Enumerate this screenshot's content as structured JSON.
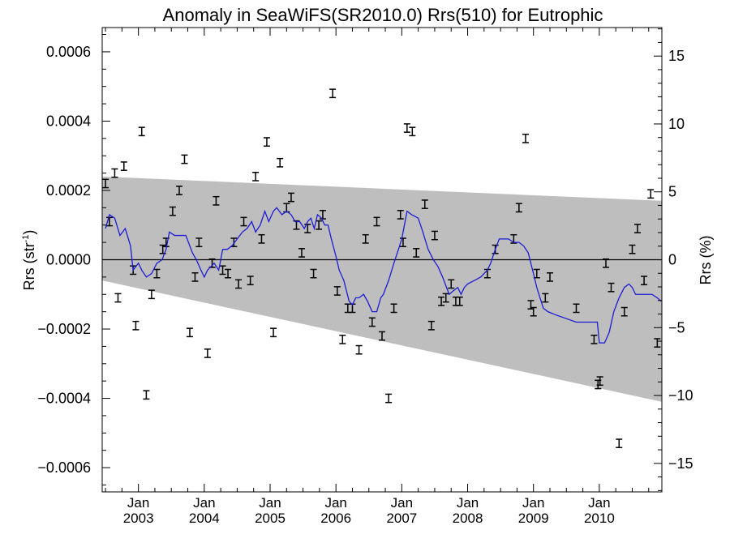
{
  "chart_data": {
    "type": "scatter",
    "title": "Anomaly in SeaWiFS(SR2010.0) Rrs(510) for Eutrophic",
    "ylabel_main": "Rrs (str",
    "ylabel_sup": "-1",
    "ylabel_close": ")",
    "ylabel_right": "Rrs (%)",
    "xlim": [
      2002.45,
      2010.95
    ],
    "ylim": [
      -0.00067,
      0.00067
    ],
    "ylim_right": [
      -17.1,
      17.1
    ],
    "yticks_left": [
      {
        "v": 0.0006,
        "label": "0.0006"
      },
      {
        "v": 0.0004,
        "label": "0.0004"
      },
      {
        "v": 0.0002,
        "label": "0.0002"
      },
      {
        "v": 0.0,
        "label": "0.0000"
      },
      {
        "v": -0.0002,
        "label": "−0.0002"
      },
      {
        "v": -0.0004,
        "label": "−0.0004"
      },
      {
        "v": -0.0006,
        "label": "−0.0006"
      }
    ],
    "yticks_right": [
      {
        "v": 15,
        "label": "15"
      },
      {
        "v": 10,
        "label": "10"
      },
      {
        "v": 5,
        "label": "5"
      },
      {
        "v": 0,
        "label": "0"
      },
      {
        "v": -5,
        "label": "−5"
      },
      {
        "v": -10,
        "label": "−10"
      },
      {
        "v": -15,
        "label": "−15"
      }
    ],
    "xticks": [
      {
        "v": 2003,
        "label": "Jan",
        "year": "2003"
      },
      {
        "v": 2004,
        "label": "Jan",
        "year": "2004"
      },
      {
        "v": 2005,
        "label": "Jan",
        "year": "2005"
      },
      {
        "v": 2006,
        "label": "Jan",
        "year": "2006"
      },
      {
        "v": 2007,
        "label": "Jan",
        "year": "2007"
      },
      {
        "v": 2008,
        "label": "Jan",
        "year": "2008"
      },
      {
        "v": 2009,
        "label": "Jan",
        "year": "2009"
      },
      {
        "v": 2010,
        "label": "Jan",
        "year": "2010"
      }
    ],
    "band": {
      "upper": [
        [
          2002.45,
          0.00024
        ],
        [
          2010.95,
          0.00017
        ]
      ],
      "lower": [
        [
          2002.45,
          -6e-05
        ],
        [
          2010.95,
          -0.00041
        ]
      ],
      "color": "#bebebe"
    },
    "zero_line": 0.0,
    "smooth_line": {
      "color": "#1c1cd4",
      "points": [
        [
          2002.5,
          9e-05
        ],
        [
          2002.56,
          0.00013
        ],
        [
          2002.64,
          0.00012
        ],
        [
          2002.72,
          7e-05
        ],
        [
          2002.8,
          9e-05
        ],
        [
          2002.88,
          4e-05
        ],
        [
          2002.92,
          -3e-05
        ],
        [
          2003.0,
          -1e-05
        ],
        [
          2003.05,
          -3e-05
        ],
        [
          2003.12,
          -5e-05
        ],
        [
          2003.2,
          -4e-05
        ],
        [
          2003.28,
          -1e-05
        ],
        [
          2003.36,
          0.0
        ],
        [
          2003.42,
          3e-05
        ],
        [
          2003.47,
          8e-05
        ],
        [
          2003.55,
          7e-05
        ],
        [
          2003.72,
          7e-05
        ],
        [
          2003.82,
          2e-05
        ],
        [
          2003.88,
          0.0
        ],
        [
          2003.95,
          -3e-05
        ],
        [
          2004.0,
          -5e-05
        ],
        [
          2004.05,
          -3e-05
        ],
        [
          2004.1,
          -2e-05
        ],
        [
          2004.15,
          -1e-05
        ],
        [
          2004.22,
          -3e-05
        ],
        [
          2004.28,
          3e-05
        ],
        [
          2004.35,
          3e-05
        ],
        [
          2004.42,
          4e-05
        ],
        [
          2004.5,
          6e-05
        ],
        [
          2004.58,
          8e-05
        ],
        [
          2004.65,
          9e-05
        ],
        [
          2004.72,
          0.00011
        ],
        [
          2004.78,
          8e-05
        ],
        [
          2004.85,
          0.0001
        ],
        [
          2004.92,
          0.00014
        ],
        [
          2004.98,
          0.00011
        ],
        [
          2005.05,
          0.00014
        ],
        [
          2005.1,
          0.00015
        ],
        [
          2005.18,
          0.00013
        ],
        [
          2005.25,
          0.00014
        ],
        [
          2005.32,
          0.00013
        ],
        [
          2005.38,
          0.00011
        ],
        [
          2005.45,
          0.00011
        ],
        [
          2005.52,
          9e-05
        ],
        [
          2005.57,
          0.00011
        ],
        [
          2005.62,
          0.00012
        ],
        [
          2005.67,
          9e-05
        ],
        [
          2005.72,
          0.00013
        ],
        [
          2005.78,
          0.00012
        ],
        [
          2005.83,
          0.0001
        ],
        [
          2005.88,
          0.0001
        ],
        [
          2005.93,
          6e-05
        ],
        [
          2006.0,
          1e-05
        ],
        [
          2006.05,
          -3e-05
        ],
        [
          2006.12,
          -6e-05
        ],
        [
          2006.2,
          -0.00012
        ],
        [
          2006.25,
          -0.00013
        ],
        [
          2006.3,
          -0.00011
        ],
        [
          2006.35,
          -0.00011
        ],
        [
          2006.42,
          -0.0001
        ],
        [
          2006.48,
          -0.00012
        ],
        [
          2006.55,
          -0.00015
        ],
        [
          2006.62,
          -0.00015
        ],
        [
          2006.68,
          -0.00011
        ],
        [
          2006.72,
          -0.0001
        ],
        [
          2006.8,
          -6e-05
        ],
        [
          2006.88,
          -1e-05
        ],
        [
          2006.95,
          3e-05
        ],
        [
          2007.0,
          6e-05
        ],
        [
          2007.05,
          0.00011
        ],
        [
          2007.08,
          0.00014
        ],
        [
          2007.15,
          0.00013
        ],
        [
          2007.25,
          0.00012
        ],
        [
          2007.32,
          8e-05
        ],
        [
          2007.4,
          3e-05
        ],
        [
          2007.48,
          0.0
        ],
        [
          2007.55,
          -2e-05
        ],
        [
          2007.62,
          -5e-05
        ],
        [
          2007.68,
          -8e-05
        ],
        [
          2007.72,
          -0.0001
        ],
        [
          2007.78,
          -9e-05
        ],
        [
          2007.85,
          -8e-05
        ],
        [
          2007.9,
          -0.0001
        ],
        [
          2007.95,
          -8e-05
        ],
        [
          2008.0,
          -7e-05
        ],
        [
          2008.1,
          -6e-05
        ],
        [
          2008.2,
          -5e-05
        ],
        [
          2008.3,
          -3e-05
        ],
        [
          2008.35,
          -1e-05
        ],
        [
          2008.42,
          3e-05
        ],
        [
          2008.48,
          6e-05
        ],
        [
          2008.55,
          6e-05
        ],
        [
          2008.62,
          6e-05
        ],
        [
          2008.7,
          5e-05
        ],
        [
          2008.78,
          5e-05
        ],
        [
          2008.85,
          4e-05
        ],
        [
          2008.92,
          2e-05
        ],
        [
          2009.0,
          -4e-05
        ],
        [
          2009.05,
          -8e-05
        ],
        [
          2009.1,
          -0.00011
        ],
        [
          2009.15,
          -0.00014
        ],
        [
          2009.22,
          -0.00015
        ],
        [
          2009.35,
          -0.00016
        ],
        [
          2009.5,
          -0.00017
        ],
        [
          2009.65,
          -0.00018
        ],
        [
          2009.8,
          -0.00018
        ],
        [
          2009.92,
          -0.00018
        ],
        [
          2009.97,
          -0.00018
        ],
        [
          2010.0,
          -0.00024
        ],
        [
          2010.08,
          -0.00024
        ],
        [
          2010.15,
          -0.00021
        ],
        [
          2010.22,
          -0.00015
        ],
        [
          2010.3,
          -0.00011
        ],
        [
          2010.38,
          -8e-05
        ],
        [
          2010.45,
          -7e-05
        ],
        [
          2010.5,
          -8e-05
        ],
        [
          2010.55,
          -0.0001
        ],
        [
          2010.62,
          -0.0001
        ],
        [
          2010.72,
          -0.0001
        ],
        [
          2010.8,
          -0.0001
        ],
        [
          2010.88,
          -0.00011
        ],
        [
          2010.94,
          -0.00012
        ]
      ]
    },
    "error_half_width": 1.2e-05,
    "points": [
      [
        2002.5,
        0.00022
      ],
      [
        2002.56,
        0.00011
      ],
      [
        2002.64,
        0.00025
      ],
      [
        2002.69,
        -0.00011
      ],
      [
        2002.78,
        0.00027
      ],
      [
        2002.92,
        -3e-05
      ],
      [
        2002.96,
        -0.00019
      ],
      [
        2003.05,
        0.00037
      ],
      [
        2003.12,
        -0.00039
      ],
      [
        2003.2,
        -0.0001
      ],
      [
        2003.28,
        -4e-05
      ],
      [
        2003.37,
        3e-05
      ],
      [
        2003.42,
        5e-05
      ],
      [
        2003.52,
        0.00014
      ],
      [
        2003.62,
        0.0002
      ],
      [
        2003.7,
        0.00029
      ],
      [
        2003.78,
        -0.00021
      ],
      [
        2003.86,
        -5e-05
      ],
      [
        2003.92,
        5e-05
      ],
      [
        2004.05,
        -0.00027
      ],
      [
        2004.12,
        -1e-05
      ],
      [
        2004.18,
        0.00017
      ],
      [
        2004.28,
        -3e-05
      ],
      [
        2004.36,
        -4e-05
      ],
      [
        2004.45,
        5e-05
      ],
      [
        2004.52,
        -7e-05
      ],
      [
        2004.6,
        0.00011
      ],
      [
        2004.7,
        -6e-05
      ],
      [
        2004.78,
        0.00024
      ],
      [
        2004.87,
        6e-05
      ],
      [
        2004.95,
        0.00034
      ],
      [
        2005.05,
        -0.00021
      ],
      [
        2005.15,
        0.00028
      ],
      [
        2005.25,
        0.00015
      ],
      [
        2005.32,
        0.00018
      ],
      [
        2005.4,
        0.0001
      ],
      [
        2005.48,
        2e-05
      ],
      [
        2005.57,
        9e-05
      ],
      [
        2005.66,
        -4e-05
      ],
      [
        2005.74,
        0.0001
      ],
      [
        2005.8,
        0.00013
      ],
      [
        2005.95,
        0.00048
      ],
      [
        2006.02,
        -9e-05
      ],
      [
        2006.1,
        -0.00023
      ],
      [
        2006.18,
        -0.00014
      ],
      [
        2006.25,
        -0.00014
      ],
      [
        2006.35,
        -0.00026
      ],
      [
        2006.45,
        6e-05
      ],
      [
        2006.55,
        -0.00018
      ],
      [
        2006.62,
        0.00011
      ],
      [
        2006.7,
        -0.00022
      ],
      [
        2006.8,
        -0.0004
      ],
      [
        2006.88,
        -0.00014
      ],
      [
        2006.98,
        0.00013
      ],
      [
        2007.02,
        5e-05
      ],
      [
        2007.08,
        0.00038
      ],
      [
        2007.16,
        0.00037
      ],
      [
        2007.22,
        2e-05
      ],
      [
        2007.35,
        0.00016
      ],
      [
        2007.45,
        -0.00019
      ],
      [
        2007.5,
        7e-05
      ],
      [
        2007.6,
        -0.00012
      ],
      [
        2007.67,
        -0.00011
      ],
      [
        2007.75,
        -7e-05
      ],
      [
        2007.82,
        -0.00012
      ],
      [
        2007.88,
        -0.00012
      ],
      [
        2008.3,
        -4e-05
      ],
      [
        2008.42,
        3e-05
      ],
      [
        2008.7,
        6e-05
      ],
      [
        2008.78,
        0.00015
      ],
      [
        2008.88,
        0.00035
      ],
      [
        2008.96,
        -0.00013
      ],
      [
        2009.0,
        -0.00015
      ],
      [
        2009.05,
        -4e-05
      ],
      [
        2009.18,
        -0.00011
      ],
      [
        2009.25,
        -5e-05
      ],
      [
        2009.65,
        -0.00014
      ],
      [
        2009.92,
        -0.00023
      ],
      [
        2009.98,
        -0.00036
      ],
      [
        2010.01,
        -0.00035
      ],
      [
        2010.1,
        -1e-05
      ],
      [
        2010.18,
        -8e-05
      ],
      [
        2010.3,
        -0.00053
      ],
      [
        2010.38,
        -0.00015
      ],
      [
        2010.5,
        3e-05
      ],
      [
        2010.58,
        9e-05
      ],
      [
        2010.68,
        -6e-05
      ],
      [
        2010.78,
        0.00019
      ],
      [
        2010.88,
        -0.00024
      ]
    ]
  }
}
